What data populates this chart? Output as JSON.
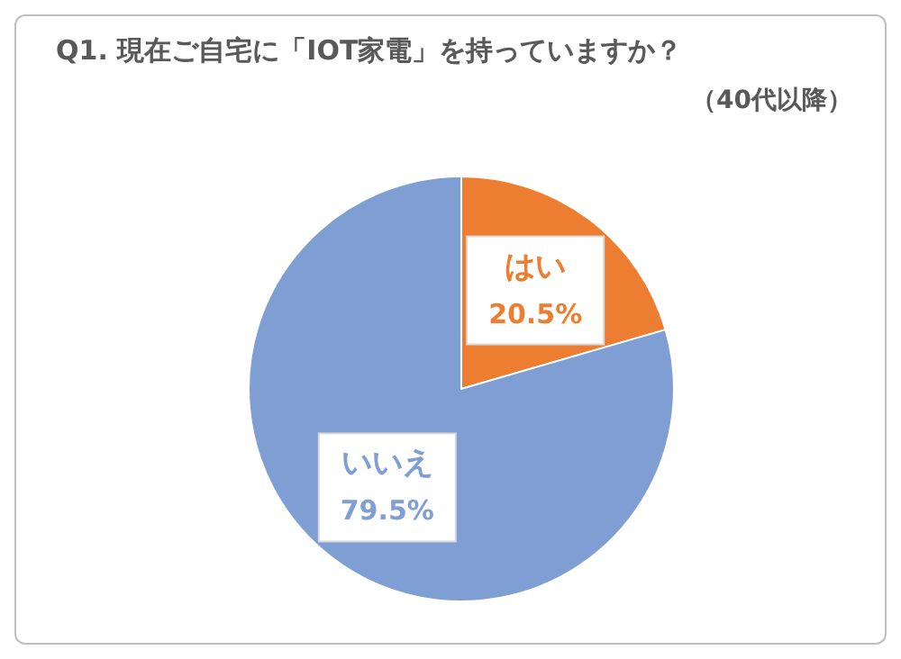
{
  "chart_data": {
    "type": "pie",
    "title": "Q1. 現在ご自宅に「IOT家電」を持っていますか？",
    "subtitle": "（40代以降）",
    "categories": [
      "はい",
      "いいえ"
    ],
    "values": [
      20.5,
      79.5
    ],
    "colors": [
      "#ed7d31",
      "#7f9fd4"
    ],
    "value_labels": [
      "20.5%",
      "79.5%"
    ],
    "legend": false
  }
}
